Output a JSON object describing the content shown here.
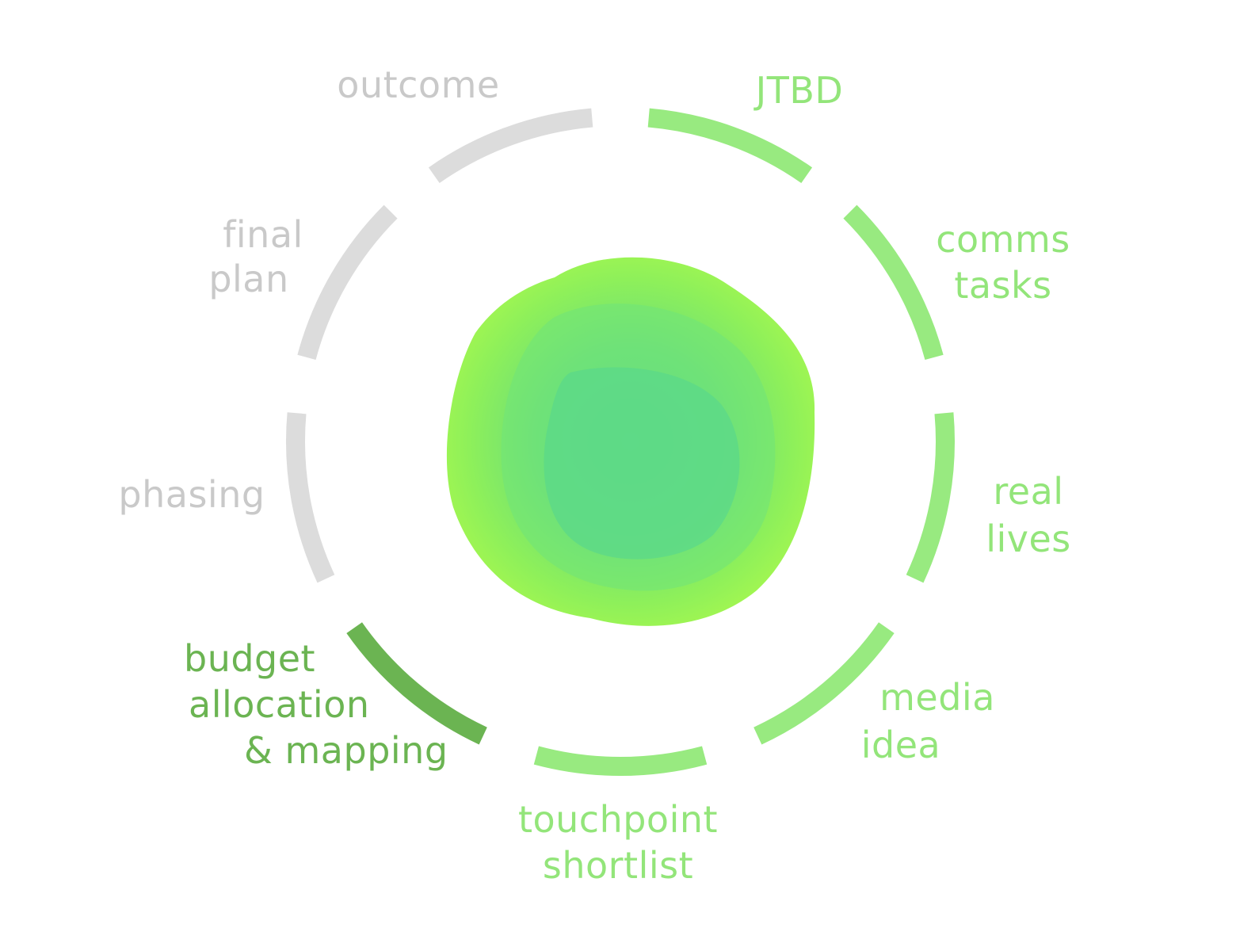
{
  "colors": {
    "done_light": "#98ea80",
    "active": "#6bb452",
    "pending": "#dcdcdc",
    "label_done": "#93e57a",
    "label_active": "#6bb452",
    "label_pending": "#c9c9c9",
    "blob_outer": "#9cf455",
    "blob_mid": "#7ee86a",
    "blob_inner": "#5fd886"
  },
  "steps": [
    {
      "id": "jtbd",
      "lines": [
        "JTBD"
      ],
      "status": "done"
    },
    {
      "id": "comms-tasks",
      "lines": [
        "comms",
        "tasks"
      ],
      "status": "done"
    },
    {
      "id": "real-lives",
      "lines": [
        "real",
        "lives"
      ],
      "status": "done"
    },
    {
      "id": "media-idea",
      "lines": [
        "media",
        "idea"
      ],
      "status": "done"
    },
    {
      "id": "touchpoint-shortlist",
      "lines": [
        "touchpoint",
        "shortlist"
      ],
      "status": "done"
    },
    {
      "id": "budget-allocation-mapping",
      "lines": [
        "budget",
        "allocation",
        "& mapping"
      ],
      "status": "active"
    },
    {
      "id": "phasing",
      "lines": [
        "phasing"
      ],
      "status": "pending"
    },
    {
      "id": "final-plan",
      "lines": [
        "final",
        "plan"
      ],
      "status": "pending"
    },
    {
      "id": "outcome",
      "lines": [
        "outcome"
      ],
      "status": "pending"
    }
  ]
}
